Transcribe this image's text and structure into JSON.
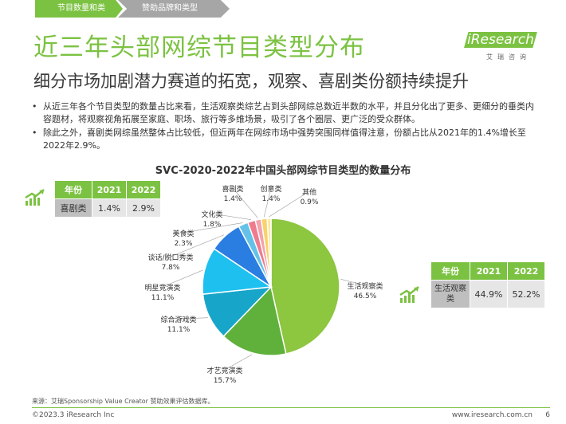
{
  "nav": {
    "tab_active": "节目数量和类型",
    "tab_inactive": "赞助品牌和类型"
  },
  "header": {
    "title": "近三年头部网综节目类型分布",
    "subtitle": "细分市场加剧潜力赛道的拓宽，观察、喜剧类份额持续提升"
  },
  "logo": {
    "word": "iResearch",
    "sub": "艾瑞咨询"
  },
  "bullets": [
    "从近三年各个节目类型的数量占比来看，生活观察类综艺占到头部网综总数近半数的水平，并且分化出了更多、更细分的垂类内容题材，将观察视角拓展至家庭、职场、旅行等多维场景，吸引了各个圈层、更广泛的受众群体。",
    "除此之外，喜剧类网综虽然整体占比较低，但近两年在网综市场中强势突围同样值得注意，份额占比从2021年的1.4%增长至2022年2.9%。"
  ],
  "chart_data": {
    "type": "pie",
    "title": "SVC-2020-2022年中国头部网综节目类型的数量分布",
    "slices": [
      {
        "name": "生活观察类",
        "value": 46.5,
        "label": "46.5%",
        "color": "#8dc63f"
      },
      {
        "name": "才艺竞演类",
        "value": 15.7,
        "label": "15.7%",
        "color": "#5fb13c"
      },
      {
        "name": "综合游戏类",
        "value": 11.1,
        "label": "11.1%",
        "color": "#17a6c9"
      },
      {
        "name": "明星竞演类",
        "value": 11.1,
        "label": "11.1%",
        "color": "#1ec0ef"
      },
      {
        "name": "谈话/脱口秀类",
        "value": 7.8,
        "label": "7.8%",
        "color": "#2a7de1"
      },
      {
        "name": "美食类",
        "value": 2.3,
        "label": "2.3%",
        "color": "#64c2e8"
      },
      {
        "name": "文化类",
        "value": 1.8,
        "label": "1.8%",
        "color": "#ef7c8e"
      },
      {
        "name": "喜剧类",
        "value": 1.4,
        "label": "1.4%",
        "color": "#f4a2ac"
      },
      {
        "name": "创意类",
        "value": 1.4,
        "label": "1.4%",
        "color": "#f8d26a"
      },
      {
        "name": "其他",
        "value": 0.9,
        "label": "0.9%",
        "color": "#fce8a4"
      }
    ]
  },
  "comedy_table": {
    "headers": [
      "年份",
      "2021",
      "2022"
    ],
    "row_label": "喜剧类",
    "values": [
      "1.4%",
      "2.9%"
    ]
  },
  "life_table": {
    "headers": [
      "年份",
      "2021",
      "2022"
    ],
    "row_label": "生活观察类",
    "values": [
      "44.9%",
      "52.2%"
    ]
  },
  "footer": {
    "source": "来源：艾瑞Sponsorship Value Creator 赞助效果评估数据库。",
    "copyright": "©2023.3 iResearch Inc",
    "site": "www.iresearch.com.cn",
    "page": "6"
  },
  "colors": {
    "accent": "#7cc242",
    "gray_tab": "#a6a6a6"
  }
}
